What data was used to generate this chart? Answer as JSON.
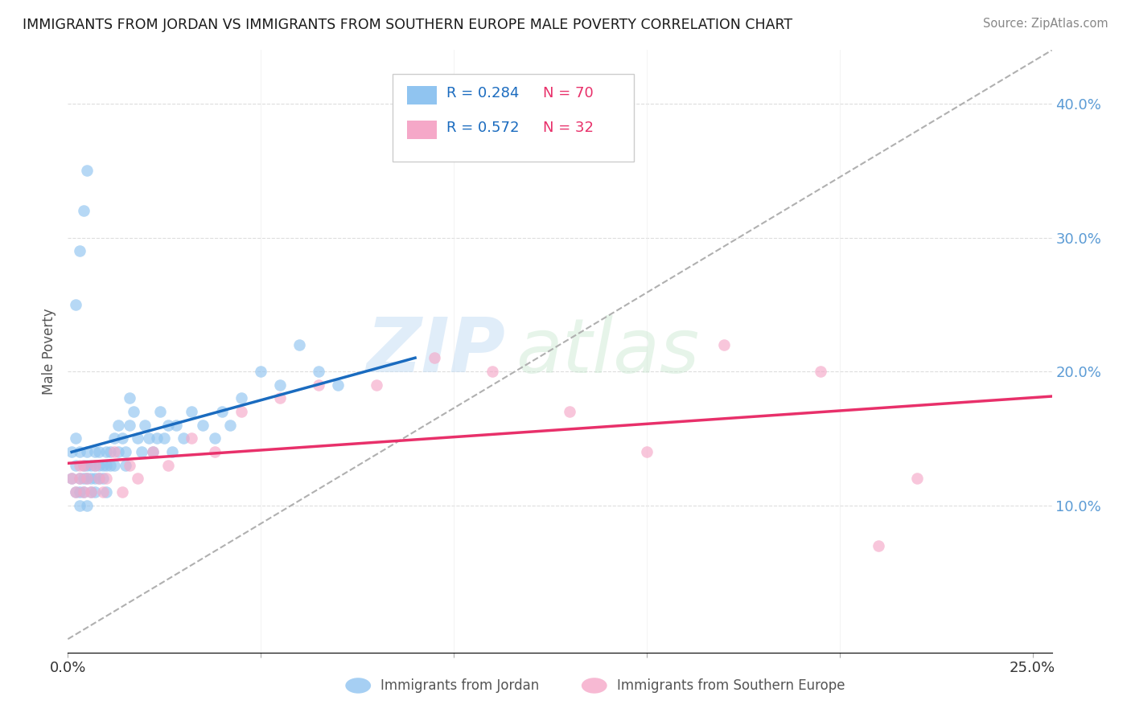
{
  "title": "IMMIGRANTS FROM JORDAN VS IMMIGRANTS FROM SOUTHERN EUROPE MALE POVERTY CORRELATION CHART",
  "source": "Source: ZipAtlas.com",
  "ylabel": "Male Poverty",
  "xlim": [
    0.0,
    0.255
  ],
  "ylim": [
    -0.01,
    0.44
  ],
  "xticks": [
    0.0,
    0.05,
    0.1,
    0.15,
    0.2,
    0.25
  ],
  "xticklabels": [
    "0.0%",
    "",
    "",
    "",
    "",
    "25.0%"
  ],
  "yticks_right": [
    0.1,
    0.2,
    0.3,
    0.4
  ],
  "yticklabels_right": [
    "10.0%",
    "20.0%",
    "30.0%",
    "40.0%"
  ],
  "blue_color": "#90c4f0",
  "pink_color": "#f5a8c8",
  "blue_line_color": "#1a6bbf",
  "pink_line_color": "#e8306a",
  "gray_dash_color": "#b0b0b0",
  "right_axis_color": "#5b9bd5",
  "legend_r1": "R = 0.284",
  "legend_n1": "N = 70",
  "legend_r2": "R = 0.572",
  "legend_n2": "N = 32",
  "r_color": "#1a6bbf",
  "n_color": "#e8306a",
  "jordan_x": [
    0.001,
    0.001,
    0.002,
    0.002,
    0.002,
    0.003,
    0.003,
    0.003,
    0.003,
    0.004,
    0.004,
    0.004,
    0.005,
    0.005,
    0.005,
    0.005,
    0.006,
    0.006,
    0.006,
    0.007,
    0.007,
    0.007,
    0.007,
    0.008,
    0.008,
    0.008,
    0.009,
    0.009,
    0.01,
    0.01,
    0.01,
    0.011,
    0.011,
    0.012,
    0.012,
    0.013,
    0.013,
    0.014,
    0.015,
    0.015,
    0.016,
    0.016,
    0.017,
    0.018,
    0.019,
    0.02,
    0.021,
    0.022,
    0.023,
    0.024,
    0.025,
    0.026,
    0.027,
    0.028,
    0.03,
    0.032,
    0.035,
    0.038,
    0.04,
    0.042,
    0.045,
    0.05,
    0.055,
    0.06,
    0.065,
    0.07,
    0.002,
    0.003,
    0.004,
    0.005
  ],
  "jordan_y": [
    0.12,
    0.14,
    0.13,
    0.11,
    0.15,
    0.12,
    0.14,
    0.11,
    0.1,
    0.13,
    0.12,
    0.11,
    0.14,
    0.13,
    0.12,
    0.1,
    0.13,
    0.12,
    0.11,
    0.14,
    0.13,
    0.12,
    0.11,
    0.13,
    0.12,
    0.14,
    0.13,
    0.12,
    0.14,
    0.13,
    0.11,
    0.14,
    0.13,
    0.15,
    0.13,
    0.14,
    0.16,
    0.15,
    0.14,
    0.13,
    0.16,
    0.18,
    0.17,
    0.15,
    0.14,
    0.16,
    0.15,
    0.14,
    0.15,
    0.17,
    0.15,
    0.16,
    0.14,
    0.16,
    0.15,
    0.17,
    0.16,
    0.15,
    0.17,
    0.16,
    0.18,
    0.2,
    0.19,
    0.22,
    0.2,
    0.19,
    0.25,
    0.29,
    0.32,
    0.35
  ],
  "s_europe_x": [
    0.001,
    0.002,
    0.003,
    0.003,
    0.004,
    0.004,
    0.005,
    0.006,
    0.007,
    0.008,
    0.009,
    0.01,
    0.012,
    0.014,
    0.016,
    0.018,
    0.022,
    0.026,
    0.032,
    0.038,
    0.045,
    0.055,
    0.065,
    0.08,
    0.095,
    0.11,
    0.13,
    0.15,
    0.17,
    0.195,
    0.21,
    0.22
  ],
  "s_europe_y": [
    0.12,
    0.11,
    0.13,
    0.12,
    0.11,
    0.13,
    0.12,
    0.11,
    0.13,
    0.12,
    0.11,
    0.12,
    0.14,
    0.11,
    0.13,
    0.12,
    0.14,
    0.13,
    0.15,
    0.14,
    0.17,
    0.18,
    0.19,
    0.19,
    0.21,
    0.2,
    0.17,
    0.14,
    0.22,
    0.2,
    0.07,
    0.12
  ],
  "jordan_trendline": [
    0.001,
    0.09,
    0.125,
    0.195
  ],
  "s_europe_trendline": [
    0.0,
    0.255,
    0.085,
    0.225
  ],
  "gray_diag": [
    0.0,
    0.255,
    0.0,
    0.255
  ]
}
